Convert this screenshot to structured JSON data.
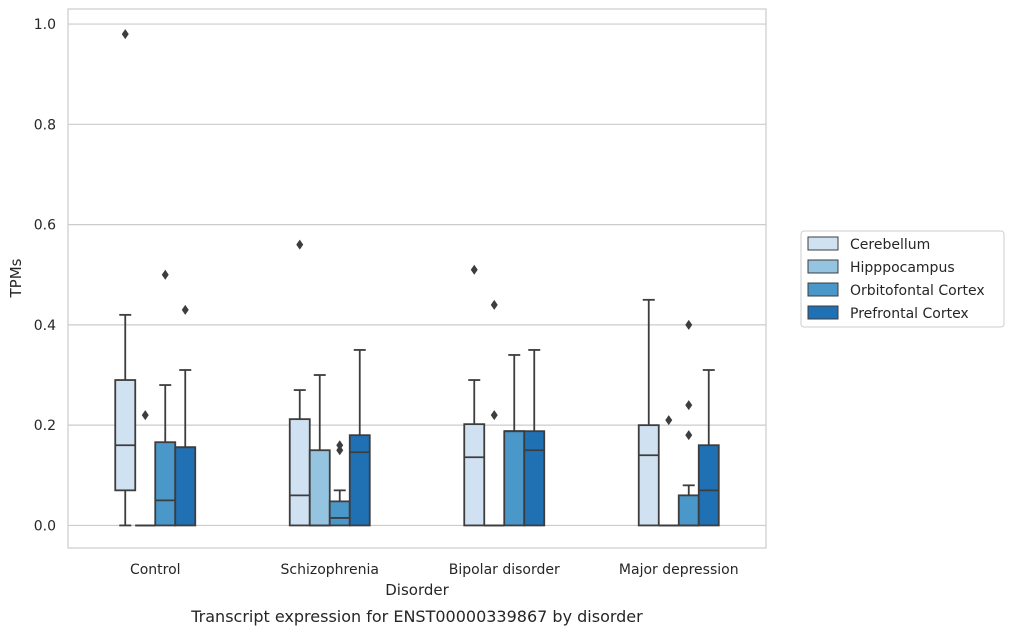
{
  "chart_data": {
    "type": "box",
    "title": "",
    "caption": "Transcript expression for ENST00000339867 by disorder",
    "xlabel": "Disorder",
    "ylabel": "TPMs",
    "ylim": [
      -0.045,
      1.03
    ],
    "yticks": [
      0.0,
      0.2,
      0.4,
      0.6,
      0.8,
      1.0
    ],
    "ytick_labels": [
      "0.0",
      "0.2",
      "0.4",
      "0.6",
      "0.8",
      "1.0"
    ],
    "grid": "horizontal",
    "legend_position": "right",
    "categories": [
      "Control",
      "Schizophrenia",
      "Bipolar disorder",
      "Major depression"
    ],
    "series": [
      {
        "name": "Cerebellum",
        "color": "#d0e1f2",
        "boxes": [
          {
            "whisker_low": 0.0,
            "q1": 0.07,
            "median": 0.16,
            "q3": 0.29,
            "whisker_high": 0.42,
            "outliers": [
              0.98
            ]
          },
          {
            "whisker_low": 0.0,
            "q1": 0.0,
            "median": 0.06,
            "q3": 0.212,
            "whisker_high": 0.27,
            "outliers": [
              0.56
            ]
          },
          {
            "whisker_low": 0.0,
            "q1": 0.0,
            "median": 0.136,
            "q3": 0.202,
            "whisker_high": 0.29,
            "outliers": [
              0.51
            ]
          },
          {
            "whisker_low": 0.0,
            "q1": 0.0,
            "median": 0.14,
            "q3": 0.2,
            "whisker_high": 0.45,
            "outliers": []
          }
        ]
      },
      {
        "name": "Hipppocampus",
        "color": "#94c4df",
        "boxes": [
          {
            "whisker_low": 0.0,
            "q1": 0.0,
            "median": 0.0,
            "q3": 0.0,
            "whisker_high": 0.0,
            "outliers": [
              0.22
            ]
          },
          {
            "whisker_low": 0.0,
            "q1": 0.0,
            "median": 0.0,
            "q3": 0.15,
            "whisker_high": 0.3,
            "outliers": []
          },
          {
            "whisker_low": 0.0,
            "q1": 0.0,
            "median": 0.0,
            "q3": 0.0,
            "whisker_high": 0.0,
            "outliers": [
              0.22,
              0.44
            ]
          },
          {
            "whisker_low": 0.0,
            "q1": 0.0,
            "median": 0.0,
            "q3": 0.0,
            "whisker_high": 0.0,
            "outliers": [
              0.21
            ]
          }
        ]
      },
      {
        "name": "Orbitofontal Cortex",
        "color": "#4a98c9",
        "boxes": [
          {
            "whisker_low": 0.0,
            "q1": 0.0,
            "median": 0.05,
            "q3": 0.166,
            "whisker_high": 0.28,
            "outliers": [
              0.5
            ]
          },
          {
            "whisker_low": 0.0,
            "q1": 0.0,
            "median": 0.015,
            "q3": 0.048,
            "whisker_high": 0.07,
            "outliers": [
              0.15,
              0.16
            ]
          },
          {
            "whisker_low": 0.0,
            "q1": 0.0,
            "median": 0.188,
            "q3": 0.188,
            "whisker_high": 0.34,
            "outliers": []
          },
          {
            "whisker_low": 0.0,
            "q1": 0.0,
            "median": 0.0,
            "q3": 0.06,
            "whisker_high": 0.08,
            "outliers": [
              0.18,
              0.24,
              0.4
            ]
          }
        ]
      },
      {
        "name": "Prefrontal Cortex",
        "color": "#2070b4",
        "boxes": [
          {
            "whisker_low": 0.0,
            "q1": 0.0,
            "median": 0.156,
            "q3": 0.156,
            "whisker_high": 0.31,
            "outliers": [
              0.43
            ]
          },
          {
            "whisker_low": 0.0,
            "q1": 0.0,
            "median": 0.146,
            "q3": 0.18,
            "whisker_high": 0.35,
            "outliers": []
          },
          {
            "whisker_low": 0.0,
            "q1": 0.0,
            "median": 0.15,
            "q3": 0.188,
            "whisker_high": 0.35,
            "outliers": []
          },
          {
            "whisker_low": 0.0,
            "q1": 0.0,
            "median": 0.07,
            "q3": 0.16,
            "whisker_high": 0.31,
            "outliers": []
          }
        ]
      }
    ]
  }
}
